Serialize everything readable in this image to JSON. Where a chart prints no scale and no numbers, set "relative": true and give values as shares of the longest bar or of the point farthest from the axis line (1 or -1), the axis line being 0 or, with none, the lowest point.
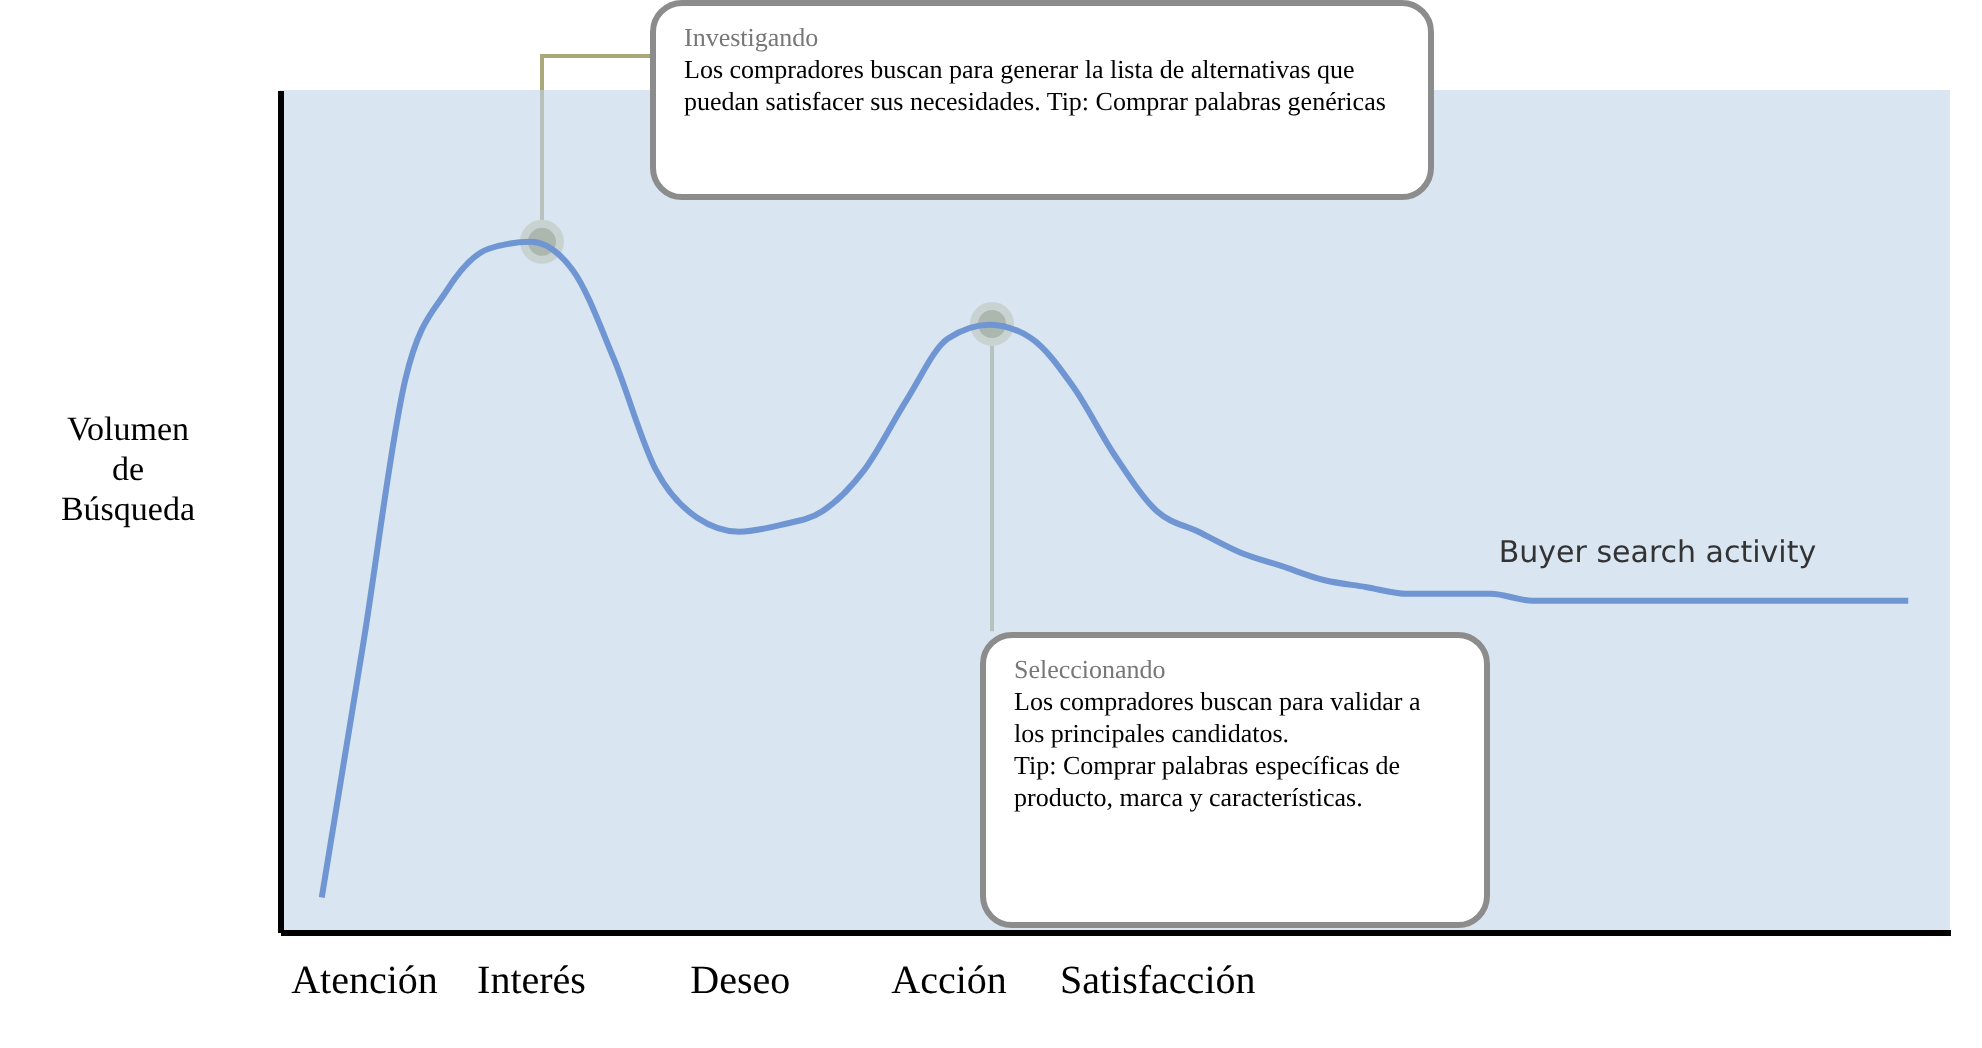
{
  "chart_data": {
    "type": "line",
    "relative": true,
    "ylabel": "Volumen de Búsqueda",
    "categories": [
      null,
      "Atención",
      null,
      null,
      null,
      "Interés",
      null,
      null,
      null,
      null,
      "Deseo",
      null,
      null,
      null,
      null,
      "Acción",
      null,
      null,
      null,
      null,
      "Satisfacción",
      null,
      null,
      null,
      null,
      null,
      null,
      null,
      null,
      null,
      null,
      null,
      null,
      null,
      null,
      null,
      null,
      null,
      null
    ],
    "series": [
      {
        "name": "Buyer search activity",
        "color": "#6f95d3",
        "values": [
          0.05,
          0.42,
          0.8,
          0.93,
          0.99,
          1,
          0.96,
          0.83,
          0.67,
          0.6,
          0.58,
          0.59,
          0.61,
          0.67,
          0.77,
          0.86,
          0.88,
          0.86,
          0.79,
          0.69,
          0.61,
          0.58,
          0.55,
          0.53,
          0.51,
          0.5,
          0.49,
          0.49,
          0.49,
          0.48,
          0.48,
          0.48,
          0.48,
          0.48,
          0.48,
          0.48,
          0.48,
          0.48,
          0.48
        ]
      }
    ],
    "annotations": [
      "Investigando\nLos compradores buscan para generar la lista de alternativas que puedan satisfacer sus necesidades.  Tip: Comprar palabras genéricas",
      "Seleccionando\nLos compradores buscan para validar a los principales candidatos.\nTip: Comprar palabras específicas de producto, marca y características."
    ],
    "legend": false,
    "grid": false
  }
}
